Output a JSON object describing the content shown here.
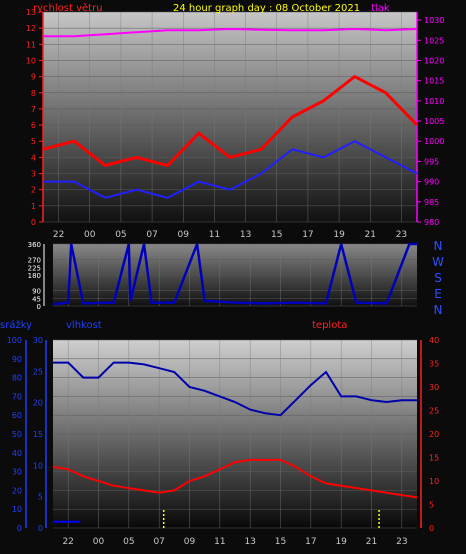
{
  "chart_data": [
    {
      "type": "line",
      "title": "24 hour graph day : 08 October 2021",
      "left_label": "rychlost větru",
      "right_label": "tlak",
      "x_ticks": [
        "22",
        "00",
        "05",
        "07",
        "09",
        "11",
        "13",
        "15",
        "17",
        "19",
        "21",
        "23"
      ],
      "y_left_ticks": [
        "0",
        "1",
        "2",
        "3",
        "4",
        "5",
        "6",
        "7",
        "8",
        "9",
        "10",
        "11",
        "12",
        "13"
      ],
      "y_right_ticks": [
        "980",
        "985",
        "990",
        "995",
        "1000",
        "1005",
        "1010",
        "1015",
        "1020",
        "1025",
        "1030"
      ],
      "ylim_left": [
        0,
        13
      ],
      "ylim_right": [
        980,
        1032
      ],
      "colors": {
        "wind_gust": "#ff0000",
        "wind_avg": "#2020ff",
        "pressure": "#ff00ff",
        "left_axis": "#ff2020",
        "right_axis": "#ff00ff",
        "title": "#ffff00"
      },
      "series": [
        {
          "x": [
            0,
            2,
            4,
            6,
            8,
            10,
            12,
            14,
            16,
            18,
            20,
            22,
            24
          ],
          "values": [
            4.5,
            5.0,
            3.5,
            4.0,
            3.5,
            5.5,
            4.0,
            4.5,
            6.5,
            7.5,
            9.0,
            8.0,
            6.0
          ]
        },
        {
          "x": [
            0,
            2,
            4,
            6,
            8,
            10,
            12,
            14,
            16,
            18,
            20,
            22,
            24
          ],
          "values": [
            2.5,
            2.5,
            1.5,
            2.0,
            1.5,
            2.5,
            2.0,
            3.0,
            4.5,
            4.0,
            5.0,
            4.0,
            3.0
          ]
        },
        {
          "x": [
            0,
            2,
            4,
            6,
            8,
            10,
            12,
            14,
            16,
            18,
            20,
            22,
            24
          ],
          "values": [
            1026,
            1026,
            1026.5,
            1027,
            1027.5,
            1027.5,
            1027.8,
            1027.6,
            1027.5,
            1027.5,
            1027.8,
            1027.5,
            1027.8
          ]
        }
      ]
    },
    {
      "type": "line",
      "side_labels": [
        "N",
        "W",
        "S",
        "E",
        "N"
      ],
      "x_ticks": [
        "22",
        "00",
        "05",
        "07",
        "09",
        "11",
        "13",
        "15",
        "17",
        "19",
        "21",
        "23"
      ],
      "y_ticks": [
        "0",
        "45",
        "90",
        "180",
        "225",
        "270",
        "360"
      ],
      "ylim": [
        0,
        360
      ],
      "colors": {
        "direction": "#0000bb",
        "axis": "#ffffff",
        "side": "#3050ff"
      },
      "series": [
        {
          "x": [
            0,
            1,
            1.2,
            2,
            4,
            5,
            5.1,
            6,
            6.5,
            8,
            9.5,
            10,
            12,
            14,
            16,
            18,
            19,
            20,
            22,
            23.5,
            24
          ],
          "values": [
            10,
            20,
            360,
            15,
            20,
            360,
            25,
            360,
            20,
            20,
            360,
            30,
            20,
            15,
            20,
            15,
            360,
            20,
            15,
            360,
            360
          ]
        }
      ]
    },
    {
      "type": "line",
      "precip_label": "srážky",
      "humidity_label": "vlhkost",
      "temp_label": "teplota",
      "x_ticks": [
        "22",
        "00",
        "05",
        "07",
        "09",
        "11",
        "13",
        "15",
        "17",
        "19",
        "21",
        "23"
      ],
      "y_humidity_ticks": [
        "0",
        "10",
        "20",
        "30",
        "40",
        "50",
        "60",
        "70",
        "80",
        "90",
        "100"
      ],
      "y_precip_ticks": [
        "0",
        "5",
        "10",
        "15",
        "20",
        "25",
        "30"
      ],
      "y_temp_ticks": [
        "0",
        "5",
        "10",
        "15",
        "20",
        "25",
        "30",
        "35",
        "40"
      ],
      "ylim_humidity": [
        0,
        100
      ],
      "ylim_temp": [
        0,
        40
      ],
      "colors": {
        "humidity": "#0000aa",
        "temperature": "#ff0000",
        "precip": "#0000ff",
        "left_axis": "#2040ff",
        "right_axis": "#ff2020",
        "marker": "#ffff00"
      },
      "series": [
        {
          "x": [
            0,
            1,
            2,
            3,
            4,
            5,
            6,
            7,
            8,
            9,
            10,
            11,
            12,
            13,
            14,
            15,
            16,
            17,
            18,
            19,
            20,
            21,
            22,
            23,
            24
          ],
          "values": [
            88,
            88,
            80,
            80,
            88,
            88,
            87,
            85,
            83,
            75,
            73,
            70,
            67,
            63,
            61,
            60,
            68,
            76,
            83,
            70,
            70,
            68,
            67,
            68,
            68
          ]
        },
        {
          "x": [
            0,
            1,
            2,
            3,
            4,
            5,
            6,
            7,
            8,
            9,
            10,
            11,
            12,
            13,
            14,
            15,
            16,
            17,
            18,
            19,
            20,
            21,
            22,
            23,
            24
          ],
          "values": [
            13,
            12.5,
            11,
            10,
            9,
            8.5,
            8,
            7.5,
            8,
            10,
            11,
            12.5,
            14,
            14.5,
            14.5,
            14.5,
            13,
            11,
            9.5,
            9,
            8.5,
            8,
            7.5,
            7,
            6.5
          ]
        },
        {
          "x": [
            0,
            1.8
          ],
          "values": [
            1,
            1
          ]
        }
      ]
    }
  ]
}
